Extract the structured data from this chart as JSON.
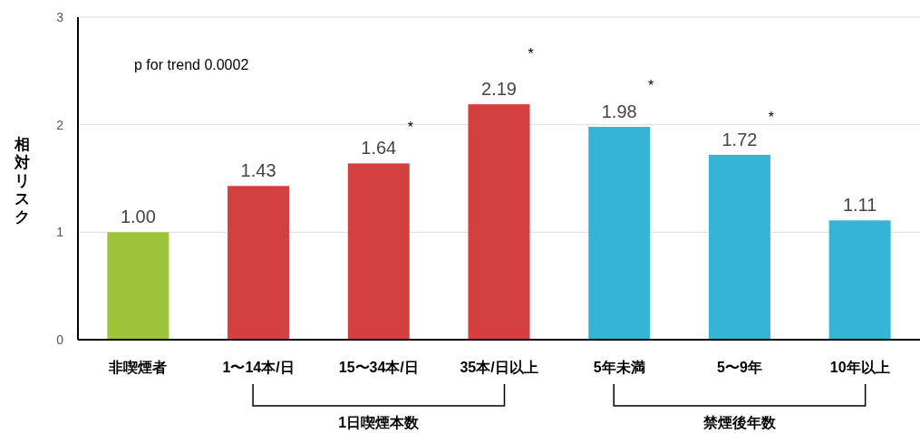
{
  "chart_data": {
    "type": "bar",
    "ylabel": "相対リスク",
    "categories": [
      "非喫煙者",
      "1〜14本/日",
      "15〜34本/日",
      "35本/日以上",
      "5年未満",
      "5〜9年",
      "10年以上"
    ],
    "values": [
      1.0,
      1.43,
      1.64,
      2.19,
      1.98,
      1.72,
      1.11
    ],
    "colors": [
      "#9dc33b",
      "#d43f3f",
      "#d43f3f",
      "#d43f3f",
      "#35b4d8",
      "#35b4d8",
      "#35b4d8"
    ],
    "value_labels": [
      "1.00",
      "1.43",
      "1.64",
      "2.19",
      "1.98",
      "1.72",
      "1.11"
    ],
    "ylim": [
      0,
      3
    ],
    "yticks": [
      0,
      1,
      2,
      3
    ],
    "grid": "y",
    "annotations": [
      "p for trend 0.0002",
      "1日喫煙本数",
      "禁煙後年数",
      "*",
      "*",
      "*",
      "*"
    ]
  }
}
